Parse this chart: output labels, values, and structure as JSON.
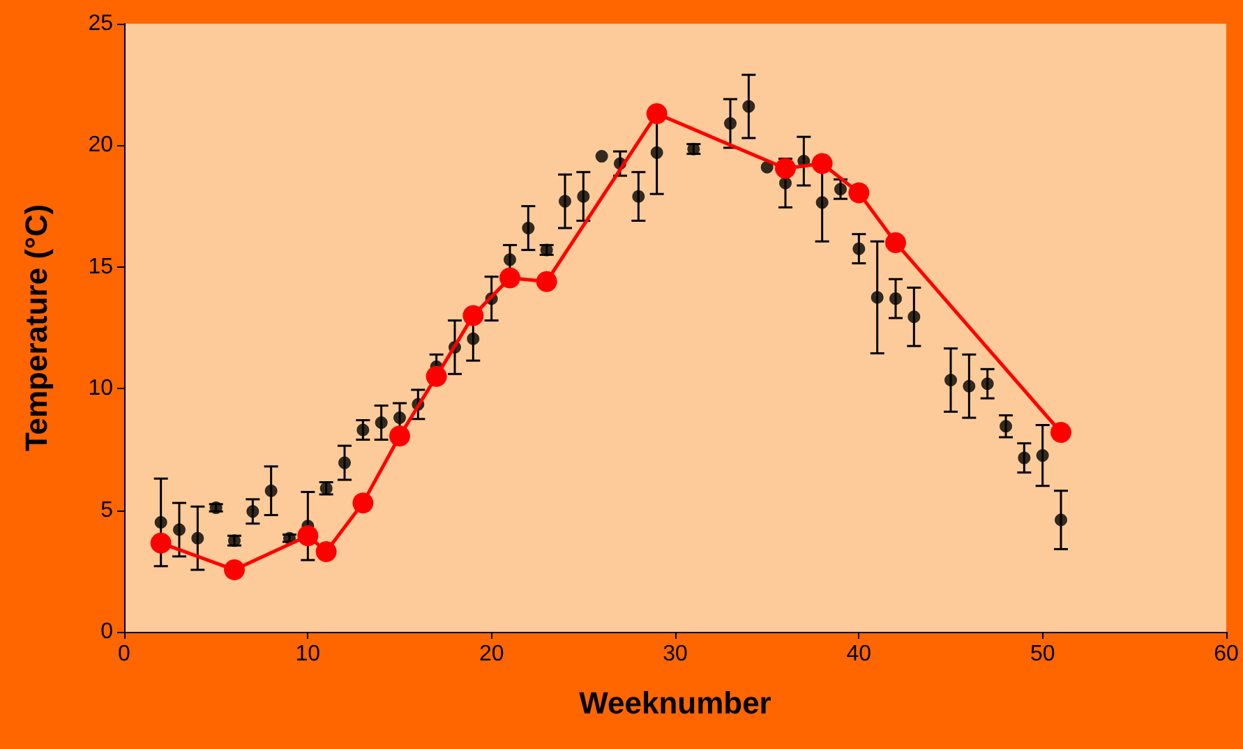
{
  "chart_data": {
    "type": "scatter",
    "xlabel": "Weeknumber",
    "ylabel": "Temperature (°C)",
    "xlim": [
      0,
      60
    ],
    "xticks": [
      0,
      10,
      20,
      30,
      40,
      50,
      60
    ],
    "ylim": [
      0,
      25
    ],
    "yticks": [
      0,
      5,
      10,
      15,
      20,
      25
    ],
    "grid": false,
    "series": [
      {
        "color": "#000000",
        "marker": "circle",
        "x": [
          2,
          3,
          4,
          5,
          6,
          7,
          8,
          9,
          10,
          11,
          12,
          13,
          14,
          15,
          16,
          17,
          18,
          19,
          20,
          21,
          22,
          23,
          24,
          25,
          26,
          27,
          28,
          29,
          31,
          33,
          34,
          35,
          36,
          37,
          38,
          39,
          40,
          41,
          42,
          43,
          45,
          46,
          47,
          48,
          49,
          50,
          51
        ],
        "values": [
          4.5,
          4.2,
          3.85,
          5.1,
          3.75,
          4.95,
          5.8,
          3.85,
          4.35,
          5.9,
          6.95,
          8.3,
          8.6,
          8.8,
          9.35,
          10.9,
          11.7,
          12.05,
          13.7,
          15.3,
          16.6,
          15.7,
          17.7,
          17.9,
          19.55,
          19.25,
          17.9,
          19.7,
          19.85,
          20.9,
          21.6,
          19.1,
          18.45,
          19.35,
          17.65,
          18.2,
          15.75,
          13.75,
          13.7,
          12.95,
          10.35,
          10.1,
          10.2,
          8.45,
          7.15,
          7.25,
          4.6
        ],
        "errors": [
          1.8,
          1.1,
          1.3,
          0.15,
          0.2,
          0.5,
          1.0,
          0.15,
          1.4,
          0.25,
          0.7,
          0.4,
          0.7,
          0.6,
          0.6,
          0.5,
          1.1,
          0.9,
          0.9,
          0.6,
          0.9,
          0.2,
          1.1,
          1.0,
          null,
          0.5,
          1.0,
          1.7,
          0.2,
          1.0,
          1.3,
          null,
          1.0,
          1.0,
          1.6,
          0.4,
          0.6,
          2.3,
          0.8,
          1.2,
          1.3,
          1.3,
          0.6,
          0.45,
          0.6,
          1.25,
          1.2
        ]
      },
      {
        "type": "line",
        "color": "#ff0000",
        "marker": "circle",
        "line_style": "solid",
        "x": [
          2,
          6,
          10,
          11,
          13,
          15,
          17,
          19,
          21,
          23,
          29,
          36,
          38,
          40,
          42,
          51
        ],
        "values": [
          3.65,
          2.55,
          3.95,
          3.3,
          5.3,
          8.05,
          10.5,
          13.0,
          14.55,
          14.4,
          21.3,
          19.05,
          19.25,
          18.05,
          16.0,
          8.2
        ]
      }
    ]
  }
}
